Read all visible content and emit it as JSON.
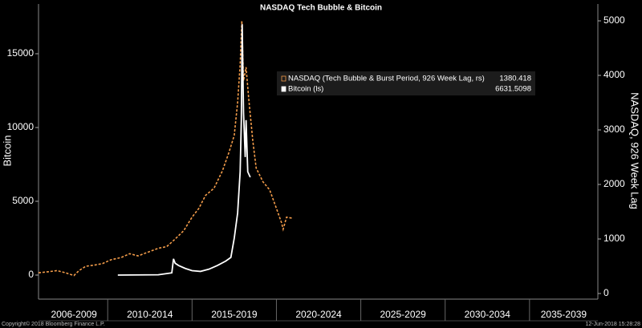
{
  "chart_data": {
    "type": "line",
    "title": "NASDAQ Tech Bubble & Bitcoin",
    "ylabel": "Bitcoin",
    "y2label": "NASDAQ, 926 Week Lag",
    "xlim": [
      2005.9,
      2039.05
    ],
    "xticks": [
      {
        "value": 2006,
        "label": "2006-2009"
      },
      {
        "value": 2010,
        "label": "2010-2014"
      },
      {
        "value": 2015,
        "label": "2015-2019"
      },
      {
        "value": 2020,
        "label": "2020-2024"
      },
      {
        "value": 2025,
        "label": "2025-2029"
      },
      {
        "value": 2030,
        "label": "2030-2034"
      },
      {
        "value": 2035,
        "label": "2035-2039"
      }
    ],
    "ylim": [
      -1630,
      18370
    ],
    "yticks": [
      0,
      5000,
      10000,
      15000
    ],
    "y2lim": [
      -103,
      5309
    ],
    "y2ticks": [
      0,
      1000,
      2000,
      3000,
      4000,
      5000
    ],
    "series": [
      {
        "name": "NASDAQ (Tech Bubble & Burst Period, 926 Week Lag, rs)",
        "color": "#f39c4a",
        "axis": "y2",
        "line_style": "dashed",
        "last_value": 1380.418,
        "x": [
          2005.9,
          2006.5,
          2007.0,
          2007.5,
          2008.0,
          2008.3,
          2008.7,
          2009.2,
          2009.7,
          2010.2,
          2010.8,
          2011.3,
          2011.8,
          2012.4,
          2013.0,
          2013.5,
          2014.0,
          2014.5,
          2015.0,
          2015.4,
          2015.8,
          2016.3,
          2016.8,
          2017.2,
          2017.5,
          2017.7,
          2017.85,
          2017.95,
          2018.05,
          2018.2,
          2018.35,
          2018.6,
          2018.8,
          2019.2,
          2019.6,
          2020.0,
          2020.3,
          2020.4,
          2020.6,
          2020.95
        ],
        "values": [
          380,
          400,
          420,
          380,
          330,
          420,
          500,
          520,
          550,
          620,
          660,
          730,
          690,
          760,
          830,
          860,
          1000,
          1150,
          1400,
          1560,
          1800,
          1930,
          2250,
          2600,
          2900,
          3500,
          4200,
          5000,
          3900,
          4150,
          3600,
          2800,
          2300,
          2050,
          1900,
          1560,
          1300,
          1180,
          1400,
          1380.418
        ]
      },
      {
        "name": "Bitcoin (ls)",
        "color": "#ffffff",
        "axis": "y",
        "line_style": "solid",
        "last_value": 6631.5098,
        "x": [
          2010.6,
          2013.0,
          2013.8,
          2013.9,
          2014.0,
          2014.2,
          2014.6,
          2015.0,
          2015.5,
          2016.0,
          2016.5,
          2017.0,
          2017.3,
          2017.5,
          2017.7,
          2017.85,
          2017.92,
          2017.97,
          2018.05,
          2018.15,
          2018.2,
          2018.3,
          2018.45
        ],
        "values": [
          0,
          20,
          150,
          1100,
          800,
          650,
          450,
          300,
          250,
          400,
          650,
          950,
          1200,
          2500,
          4200,
          7000,
          10500,
          17000,
          11000,
          8000,
          10500,
          7000,
          6631.5098
        ]
      }
    ],
    "copyright": "Copyright© 2018 Bloomberg Finance L.P.",
    "timestamp": "12-Jun-2018 15:28:28"
  }
}
